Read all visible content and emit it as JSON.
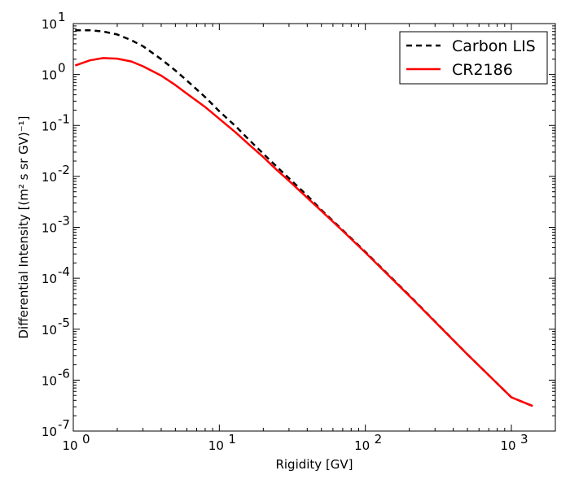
{
  "chart_data": {
    "type": "line",
    "title": "",
    "xlabel": "Rigidity [GV]",
    "ylabel": "Differential Intensity [(m² s sr GV)⁻¹]",
    "xscale": "log",
    "yscale": "log",
    "xlim": [
      1,
      2000
    ],
    "ylim": [
      1e-07,
      10
    ],
    "x_ticks": [
      {
        "value": 1,
        "label": "10",
        "exp": "0"
      },
      {
        "value": 10,
        "label": "10",
        "exp": "1"
      },
      {
        "value": 100,
        "label": "10",
        "exp": "2"
      },
      {
        "value": 1000,
        "label": "10",
        "exp": "3"
      }
    ],
    "y_ticks": [
      {
        "value": 1e-07,
        "label": "10",
        "exp": "-7"
      },
      {
        "value": 1e-06,
        "label": "10",
        "exp": "-6"
      },
      {
        "value": 1e-05,
        "label": "10",
        "exp": "-5"
      },
      {
        "value": 0.0001,
        "label": "10",
        "exp": "-4"
      },
      {
        "value": 0.001,
        "label": "10",
        "exp": "-3"
      },
      {
        "value": 0.01,
        "label": "10",
        "exp": "-2"
      },
      {
        "value": 0.1,
        "label": "10",
        "exp": "-1"
      },
      {
        "value": 1,
        "label": "10",
        "exp": "0"
      },
      {
        "value": 10,
        "label": "10",
        "exp": "1"
      }
    ],
    "grid": false,
    "legend_position": "top-right",
    "series": [
      {
        "name": "Carbon LIS",
        "color": "#000000",
        "style": "dashed",
        "x": [
          1.03,
          1.3,
          1.6,
          2,
          2.5,
          3,
          4,
          5,
          6,
          8,
          10,
          13,
          16,
          20,
          25,
          30,
          40,
          50,
          70,
          100,
          200,
          500,
          1000,
          1400
        ],
        "y": [
          7.4,
          7.4,
          7.0,
          6.1,
          4.7,
          3.6,
          2.0,
          1.2,
          0.76,
          0.36,
          0.19,
          0.095,
          0.052,
          0.028,
          0.015,
          0.0092,
          0.0042,
          0.0022,
          0.00088,
          0.00033,
          4.6e-05,
          3.2e-06,
          4.6e-07,
          3.1e-07
        ]
      },
      {
        "name": "CR2186",
        "color": "#ff0000",
        "style": "solid",
        "x": [
          1.03,
          1.3,
          1.6,
          2,
          2.5,
          3,
          4,
          5,
          6,
          8,
          10,
          13,
          16,
          20,
          25,
          30,
          40,
          50,
          70,
          100,
          200,
          500,
          1000,
          1400
        ],
        "y": [
          1.5,
          1.9,
          2.1,
          2.05,
          1.8,
          1.45,
          0.95,
          0.62,
          0.42,
          0.23,
          0.135,
          0.072,
          0.042,
          0.024,
          0.013,
          0.0082,
          0.0038,
          0.0021,
          0.00085,
          0.00032,
          4.5e-05,
          3.2e-06,
          4.6e-07,
          3.1e-07
        ]
      }
    ]
  }
}
